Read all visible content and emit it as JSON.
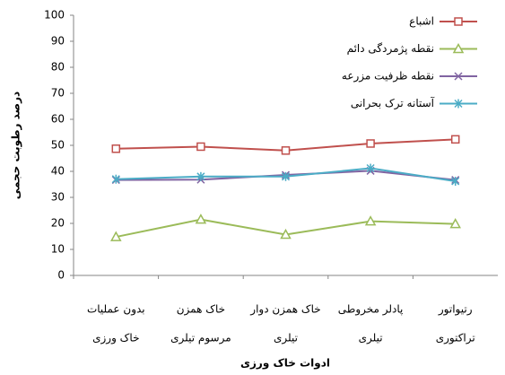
{
  "chart_data": {
    "type": "line",
    "y_label": "درصد رطوبت حجمی",
    "x_label": "ادوات خاک ورزی",
    "categories": [
      [
        "بدون عملیات",
        "خاک ورزی"
      ],
      [
        "خاک همزن",
        "مرسوم تیلری"
      ],
      [
        "خاک همزن دوار",
        "تیلری"
      ],
      [
        "پادلر مخروطی",
        "تیلری"
      ],
      [
        "رتیواتور",
        "تراکتوری"
      ]
    ],
    "series": [
      {
        "name": "اشباع",
        "color": "#c0504d",
        "marker": "square",
        "values": [
          48.7,
          49.5,
          48,
          50.7,
          52.3
        ]
      },
      {
        "name": "نقطه پژمردگی دائم",
        "color": "#9bbb59",
        "marker": "triangle",
        "values": [
          14.8,
          21.5,
          15.7,
          20.8,
          19.8
        ]
      },
      {
        "name": "نقطه ظرفیت مزرعه",
        "color": "#8064a2",
        "marker": "x",
        "values": [
          36.7,
          36.8,
          38.6,
          40.2,
          36.7
        ]
      },
      {
        "name": "آستانه ترک بحرانی",
        "color": "#4bacc6",
        "marker": "asterisk",
        "values": [
          37,
          38,
          38,
          41.2,
          36.2
        ]
      }
    ],
    "ylim": [
      0,
      100
    ],
    "yticks": [
      0,
      10,
      20,
      30,
      40,
      50,
      60,
      70,
      80,
      90,
      100
    ],
    "legend": "upper right"
  }
}
